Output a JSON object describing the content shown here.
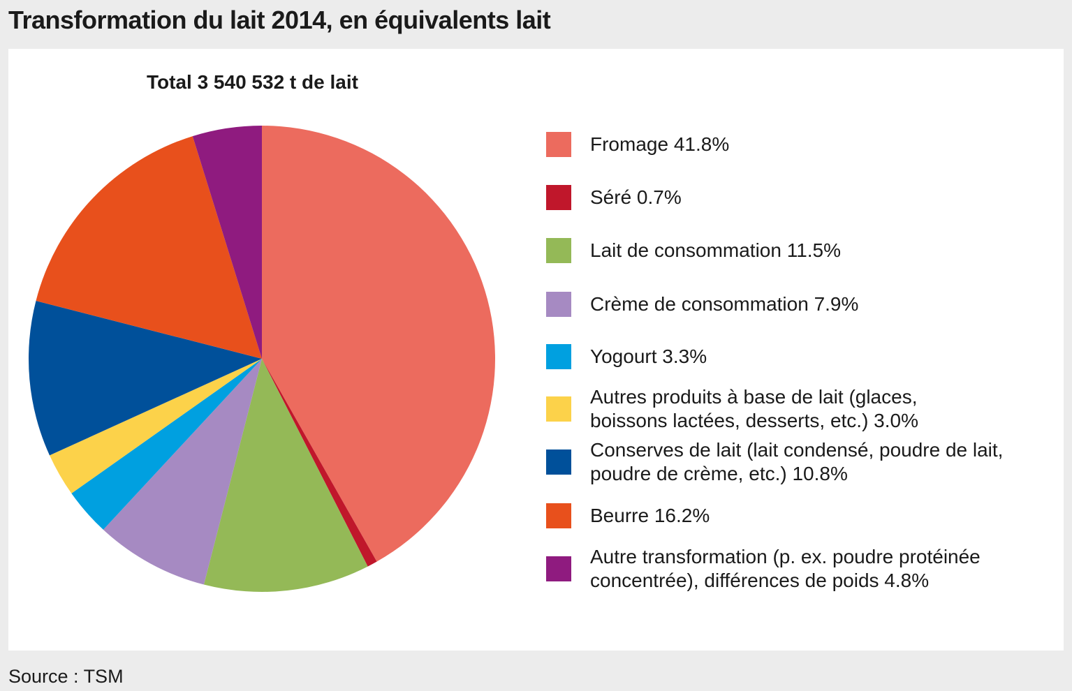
{
  "title": "Transformation du lait 2014, en équivalents lait",
  "source": "Source : TSM",
  "chart_data": {
    "type": "pie",
    "title": "Total 3 540 532 t de lait",
    "unit": "%",
    "slices": [
      {
        "label": "Fromage 41.8%",
        "name": "Fromage",
        "value": 41.8,
        "color": "#ec6b5e"
      },
      {
        "label": "Séré 0.7%",
        "name": "Séré",
        "value": 0.7,
        "color": "#c0172b"
      },
      {
        "label": "Lait de consommation 11.5%",
        "name": "Lait de consommation",
        "value": 11.5,
        "color": "#94b957"
      },
      {
        "label": "Crème de consommation 7.9%",
        "name": "Crème de consommation",
        "value": 7.9,
        "color": "#a68ac2"
      },
      {
        "label": "Yogourt 3.3%",
        "name": "Yogourt",
        "value": 3.3,
        "color": "#00a0e0"
      },
      {
        "label": "Autres produits à base de lait (glaces,\nboissons lactées, desserts, etc.) 3.0%",
        "name": "Autres produits à base de lait",
        "value": 3.0,
        "color": "#fcd24a"
      },
      {
        "label": "Conserves de lait (lait condensé, poudre de lait,\npoudre de crème, etc.) 10.8%",
        "name": "Conserves de lait",
        "value": 10.8,
        "color": "#00509a"
      },
      {
        "label": "Beurre 16.2%",
        "name": "Beurre",
        "value": 16.2,
        "color": "#e8501c"
      },
      {
        "label": "Autre transformation (p. ex. poudre protéinée\nconcentrée), différences de poids 4.8%",
        "name": "Autre transformation",
        "value": 4.8,
        "color": "#8f1b7f"
      }
    ],
    "start_angle": "12 o'clock",
    "direction": "clockwise",
    "legend_position": "right"
  }
}
